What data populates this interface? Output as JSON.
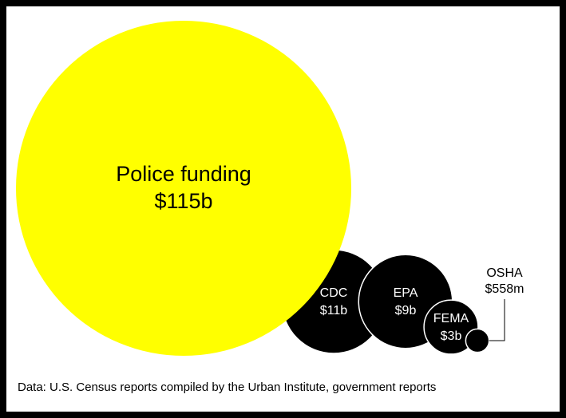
{
  "chart_data": {
    "type": "bubble",
    "categories": [
      "Police funding",
      "CDC",
      "EPA",
      "FEMA",
      "OSHA"
    ],
    "values": [
      115,
      11,
      9,
      3,
      0.558
    ],
    "value_labels": [
      "$115b",
      "$11b",
      "$9b",
      "$3b",
      "$558m"
    ],
    "colors": [
      "#ffff00",
      "#000000",
      "#000000",
      "#000000",
      "#000000"
    ],
    "source": "Data: U.S. Census reports compiled by the Urban Institute, government reports"
  }
}
